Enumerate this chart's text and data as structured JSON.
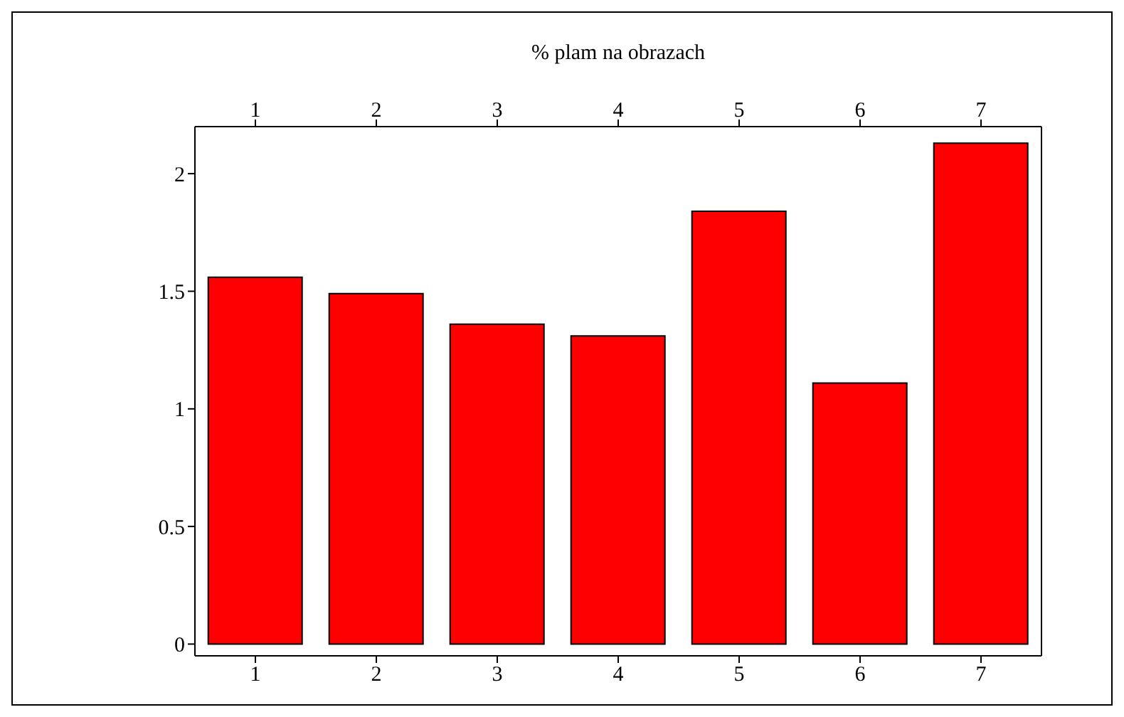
{
  "chart_data": {
    "type": "bar",
    "x2label": "% plam na obrazach",
    "categories": [
      "1",
      "2",
      "3",
      "4",
      "5",
      "6",
      "7"
    ],
    "series": [
      {
        "color": "#ff0000",
        "values": [
          1.56,
          1.49,
          1.36,
          1.31,
          1.84,
          1.11,
          2.13
        ]
      }
    ],
    "ylim": [
      -0.05,
      2.2
    ],
    "yticks": [
      0,
      0.5,
      1,
      1.5,
      2
    ],
    "grid": false,
    "legend": false
  }
}
